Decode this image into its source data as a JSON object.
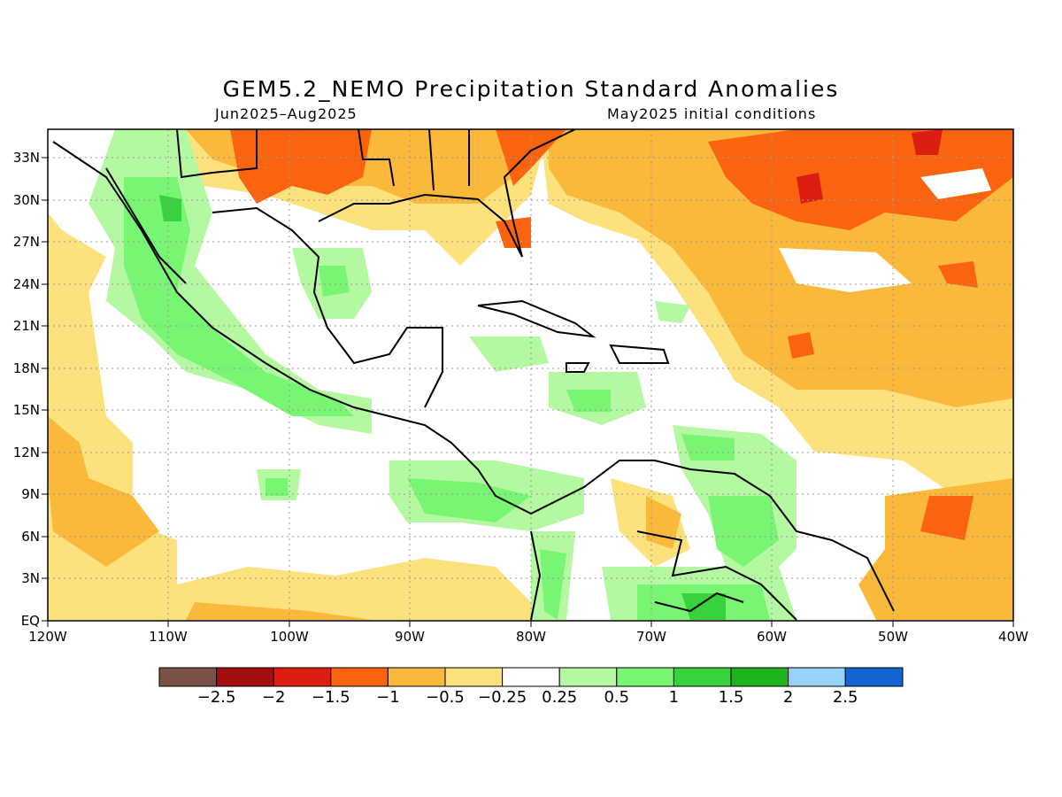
{
  "title": "GEM5.2_NEMO Precipitation Standard Anomalies",
  "period": "Jun2025–Aug2025",
  "init": "May2025 initial conditions",
  "lat_labels": [
    "33N",
    "30N",
    "27N",
    "24N",
    "21N",
    "18N",
    "15N",
    "12N",
    "9N",
    "6N",
    "3N",
    "EQ"
  ],
  "lon_labels": [
    "120W",
    "110W",
    "100W",
    "90W",
    "80W",
    "70W",
    "60W",
    "50W",
    "40W"
  ],
  "colorbar": {
    "colors": [
      "#7b5046",
      "#a50e0e",
      "#dc1e10",
      "#fa6410",
      "#fbb93c",
      "#fde17d",
      "#ffffff",
      "#b4f8a2",
      "#78f573",
      "#37d23d",
      "#1eb41e",
      "#96d2fa",
      "#1464d2"
    ],
    "labels": [
      "−2.5",
      "−2",
      "−1.5",
      "−1",
      "−0.5",
      "−0.25",
      "0.25",
      "0.5",
      "1",
      "1.5",
      "2",
      "2.5"
    ]
  }
}
